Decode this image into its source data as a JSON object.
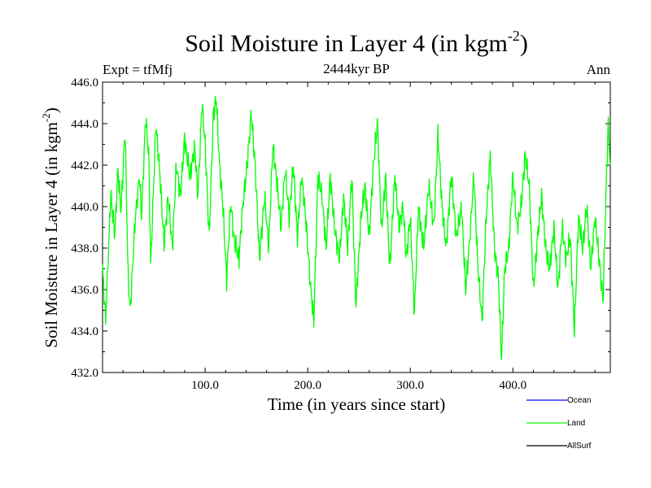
{
  "chart_data": {
    "type": "line",
    "title": "Soil Moisture in Layer 4 (in kgm",
    "title_sup": "-2",
    "title_close": ")",
    "subtitle": "2444kyr BP",
    "left_label": "Expt = tfMfj",
    "right_label": "Ann",
    "xlabel": "Time (in years since start)",
    "ylabel": "Soil Moisture in Layer 4 (in kgm",
    "ylabel_sup": "-2",
    "ylabel_close": ")",
    "xlim": [
      0,
      495
    ],
    "ylim": [
      432.0,
      446.0
    ],
    "x_ticks": [
      100,
      200,
      300,
      400
    ],
    "x_tick_labels": [
      "100.0",
      "200.0",
      "300.0",
      "400.0"
    ],
    "y_ticks": [
      432,
      434,
      436,
      438,
      440,
      442,
      444,
      446
    ],
    "y_tick_labels": [
      "432.0",
      "434.0",
      "436.0",
      "438.0",
      "440.0",
      "442.0",
      "444.0",
      "446.0"
    ],
    "legend": [
      {
        "name": "Ocean",
        "color": "#0000ff"
      },
      {
        "name": "Land",
        "color": "#00ff00"
      },
      {
        "name": "AllSurf",
        "color": "#000000"
      }
    ],
    "series": [
      {
        "name": "Land",
        "color": "#00ff00",
        "anchors": [
          [
            0,
            437.0
          ],
          [
            3,
            434.5
          ],
          [
            8,
            440.6
          ],
          [
            12,
            438.6
          ],
          [
            15,
            441.8
          ],
          [
            18,
            439.8
          ],
          [
            22,
            443.7
          ],
          [
            25,
            436.5
          ],
          [
            27,
            435.0
          ],
          [
            32,
            439.5
          ],
          [
            36,
            441.5
          ],
          [
            38,
            439.5
          ],
          [
            42,
            444.3
          ],
          [
            45,
            442.5
          ],
          [
            47,
            437.2
          ],
          [
            52,
            444.0
          ],
          [
            56,
            441.5
          ],
          [
            60,
            438.2
          ],
          [
            64,
            440.5
          ],
          [
            68,
            438.0
          ],
          [
            72,
            442.0
          ],
          [
            76,
            440.5
          ],
          [
            80,
            443.3
          ],
          [
            85,
            441.5
          ],
          [
            90,
            442.8
          ],
          [
            93,
            440.5
          ],
          [
            97,
            445.0
          ],
          [
            100,
            443.0
          ],
          [
            104,
            438.5
          ],
          [
            108,
            444.5
          ],
          [
            111,
            445.2
          ],
          [
            114,
            442.0
          ],
          [
            117,
            440.3
          ],
          [
            121,
            436.5
          ],
          [
            125,
            440.2
          ],
          [
            128,
            438.5
          ],
          [
            133,
            437.5
          ],
          [
            137,
            440.2
          ],
          [
            141,
            442.0
          ],
          [
            145,
            444.5
          ],
          [
            149,
            441.8
          ],
          [
            153,
            437.5
          ],
          [
            158,
            440.5
          ],
          [
            162,
            438.0
          ],
          [
            166,
            443.0
          ],
          [
            170,
            441.2
          ],
          [
            174,
            439.0
          ],
          [
            178,
            441.8
          ],
          [
            182,
            439.5
          ],
          [
            186,
            442.0
          ],
          [
            190,
            438.5
          ],
          [
            194,
            441.5
          ],
          [
            198,
            439.5
          ],
          [
            203,
            436.0
          ],
          [
            206,
            434.5
          ],
          [
            210,
            441.5
          ],
          [
            214,
            440.5
          ],
          [
            218,
            438.0
          ],
          [
            222,
            441.5
          ],
          [
            226,
            439.0
          ],
          [
            231,
            437.5
          ],
          [
            235,
            440.5
          ],
          [
            239,
            438.0
          ],
          [
            243,
            441.5
          ],
          [
            247,
            435.2
          ],
          [
            252,
            439.5
          ],
          [
            256,
            441.0
          ],
          [
            260,
            438.5
          ],
          [
            264,
            442.0
          ],
          [
            268,
            444.0
          ],
          [
            272,
            438.8
          ],
          [
            276,
            441.5
          ],
          [
            280,
            437.0
          ],
          [
            285,
            441.5
          ],
          [
            289,
            439.0
          ],
          [
            293,
            440.0
          ],
          [
            296,
            437.5
          ],
          [
            300,
            439.5
          ],
          [
            304,
            434.8
          ],
          [
            308,
            440.0
          ],
          [
            313,
            438.0
          ],
          [
            318,
            441.0
          ],
          [
            323,
            439.0
          ],
          [
            327,
            443.5
          ],
          [
            331,
            440.0
          ],
          [
            335,
            438.0
          ],
          [
            340,
            441.5
          ],
          [
            345,
            438.5
          ],
          [
            350,
            440.0
          ],
          [
            354,
            436.0
          ],
          [
            358,
            438.5
          ],
          [
            362,
            441.5
          ],
          [
            366,
            437.0
          ],
          [
            370,
            434.5
          ],
          [
            374,
            439.5
          ],
          [
            378,
            442.5
          ],
          [
            382,
            438.0
          ],
          [
            386,
            436.5
          ],
          [
            389,
            432.6
          ],
          [
            392,
            437.0
          ],
          [
            396,
            438.0
          ],
          [
            400,
            441.5
          ],
          [
            404,
            439.0
          ],
          [
            408,
            440.0
          ],
          [
            412,
            442.5
          ],
          [
            416,
            441.0
          ],
          [
            420,
            436.0
          ],
          [
            424,
            438.5
          ],
          [
            428,
            440.5
          ],
          [
            432,
            438.0
          ],
          [
            436,
            437.0
          ],
          [
            440,
            439.0
          ],
          [
            444,
            436.0
          ],
          [
            448,
            439.0
          ],
          [
            452,
            437.5
          ],
          [
            456,
            438.5
          ],
          [
            460,
            434.0
          ],
          [
            464,
            439.5
          ],
          [
            468,
            438.0
          ],
          [
            472,
            440.0
          ],
          [
            476,
            437.0
          ],
          [
            480,
            439.5
          ],
          [
            484,
            437.5
          ],
          [
            488,
            435.5
          ],
          [
            491,
            441.0
          ],
          [
            493,
            444.0
          ],
          [
            495,
            442.0
          ]
        ]
      }
    ]
  }
}
